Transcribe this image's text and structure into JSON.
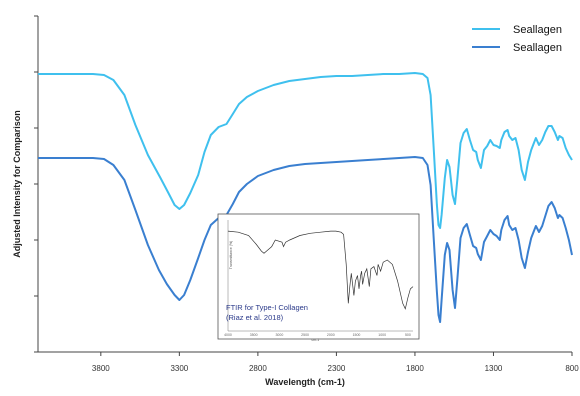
{
  "chart_data": {
    "type": "line",
    "title": "",
    "xlabel": "Wavelength (cm-1)",
    "ylabel": "Adjusted Intensity for Comparison",
    "xlim": [
      4200,
      800
    ],
    "x_reversed": true,
    "x_ticks": [
      "3800",
      "3300",
      "2800",
      "2300",
      "1800",
      "1300",
      "800"
    ],
    "y_tick_labels": false,
    "grid": false,
    "legend_position": "top-right",
    "series": [
      {
        "name": "Seallagen",
        "color": "#3fc0ee",
        "points": [
          [
            4200,
            74
          ],
          [
            4000,
            74
          ],
          [
            3850,
            74
          ],
          [
            3780,
            75
          ],
          [
            3720,
            80
          ],
          [
            3650,
            95
          ],
          [
            3580,
            125
          ],
          [
            3500,
            155
          ],
          [
            3420,
            178
          ],
          [
            3370,
            193
          ],
          [
            3330,
            205
          ],
          [
            3300,
            209
          ],
          [
            3270,
            205
          ],
          [
            3230,
            193
          ],
          [
            3180,
            175
          ],
          [
            3140,
            152
          ],
          [
            3100,
            135
          ],
          [
            3050,
            127
          ],
          [
            3000,
            124
          ],
          [
            2960,
            114
          ],
          [
            2920,
            104
          ],
          [
            2870,
            97
          ],
          [
            2800,
            91
          ],
          [
            2700,
            85
          ],
          [
            2600,
            81
          ],
          [
            2500,
            79
          ],
          [
            2400,
            77
          ],
          [
            2300,
            76
          ],
          [
            2200,
            76
          ],
          [
            2100,
            75
          ],
          [
            2000,
            74
          ],
          [
            1900,
            74
          ],
          [
            1800,
            73
          ],
          [
            1750,
            74
          ],
          [
            1720,
            78
          ],
          [
            1700,
            95
          ],
          [
            1680,
            150
          ],
          [
            1660,
            205
          ],
          [
            1650,
            225
          ],
          [
            1640,
            228
          ],
          [
            1630,
            215
          ],
          [
            1610,
            178
          ],
          [
            1595,
            160
          ],
          [
            1580,
            167
          ],
          [
            1560,
            195
          ],
          [
            1545,
            204
          ],
          [
            1530,
            180
          ],
          [
            1510,
            143
          ],
          [
            1490,
            133
          ],
          [
            1470,
            129
          ],
          [
            1450,
            140
          ],
          [
            1430,
            150
          ],
          [
            1410,
            152
          ],
          [
            1400,
            160
          ],
          [
            1380,
            168
          ],
          [
            1360,
            150
          ],
          [
            1340,
            146
          ],
          [
            1320,
            140
          ],
          [
            1300,
            145
          ],
          [
            1280,
            146
          ],
          [
            1260,
            148
          ],
          [
            1250,
            140
          ],
          [
            1230,
            132
          ],
          [
            1210,
            130
          ],
          [
            1200,
            136
          ],
          [
            1180,
            140
          ],
          [
            1160,
            138
          ],
          [
            1140,
            150
          ],
          [
            1120,
            170
          ],
          [
            1100,
            180
          ],
          [
            1080,
            162
          ],
          [
            1060,
            150
          ],
          [
            1040,
            142
          ],
          [
            1030,
            138
          ],
          [
            1010,
            145
          ],
          [
            990,
            140
          ],
          [
            970,
            132
          ],
          [
            950,
            126
          ],
          [
            930,
            126
          ],
          [
            910,
            132
          ],
          [
            890,
            140
          ],
          [
            880,
            136
          ],
          [
            860,
            138
          ],
          [
            840,
            148
          ],
          [
            820,
            155
          ],
          [
            800,
            160
          ]
        ]
      },
      {
        "name": "Seallagen",
        "color": "#3a7fd0",
        "points": [
          [
            4200,
            158
          ],
          [
            4000,
            158
          ],
          [
            3850,
            158
          ],
          [
            3780,
            159
          ],
          [
            3720,
            165
          ],
          [
            3650,
            180
          ],
          [
            3580,
            210
          ],
          [
            3500,
            245
          ],
          [
            3430,
            270
          ],
          [
            3380,
            284
          ],
          [
            3330,
            295
          ],
          [
            3300,
            300
          ],
          [
            3270,
            295
          ],
          [
            3230,
            280
          ],
          [
            3180,
            258
          ],
          [
            3140,
            240
          ],
          [
            3100,
            225
          ],
          [
            3050,
            218
          ],
          [
            3000,
            215
          ],
          [
            2960,
            204
          ],
          [
            2920,
            192
          ],
          [
            2870,
            184
          ],
          [
            2800,
            176
          ],
          [
            2700,
            170
          ],
          [
            2600,
            166
          ],
          [
            2500,
            164
          ],
          [
            2400,
            163
          ],
          [
            2300,
            162
          ],
          [
            2200,
            161
          ],
          [
            2100,
            160
          ],
          [
            2000,
            159
          ],
          [
            1900,
            158
          ],
          [
            1800,
            157
          ],
          [
            1750,
            158
          ],
          [
            1720,
            165
          ],
          [
            1700,
            185
          ],
          [
            1680,
            240
          ],
          [
            1660,
            292
          ],
          [
            1650,
            315
          ],
          [
            1640,
            322
          ],
          [
            1630,
            300
          ],
          [
            1610,
            255
          ],
          [
            1595,
            243
          ],
          [
            1580,
            250
          ],
          [
            1560,
            290
          ],
          [
            1545,
            308
          ],
          [
            1530,
            280
          ],
          [
            1510,
            238
          ],
          [
            1490,
            228
          ],
          [
            1470,
            224
          ],
          [
            1450,
            235
          ],
          [
            1430,
            246
          ],
          [
            1410,
            248
          ],
          [
            1400,
            254
          ],
          [
            1380,
            260
          ],
          [
            1360,
            242
          ],
          [
            1340,
            236
          ],
          [
            1320,
            230
          ],
          [
            1300,
            234
          ],
          [
            1280,
            236
          ],
          [
            1260,
            240
          ],
          [
            1250,
            230
          ],
          [
            1230,
            220
          ],
          [
            1210,
            216
          ],
          [
            1200,
            225
          ],
          [
            1180,
            230
          ],
          [
            1160,
            228
          ],
          [
            1140,
            240
          ],
          [
            1120,
            258
          ],
          [
            1100,
            268
          ],
          [
            1080,
            252
          ],
          [
            1060,
            238
          ],
          [
            1040,
            230
          ],
          [
            1030,
            226
          ],
          [
            1010,
            232
          ],
          [
            990,
            226
          ],
          [
            970,
            216
          ],
          [
            950,
            206
          ],
          [
            930,
            202
          ],
          [
            910,
            208
          ],
          [
            890,
            218
          ],
          [
            880,
            215
          ],
          [
            860,
            218
          ],
          [
            840,
            228
          ],
          [
            820,
            240
          ],
          [
            800,
            255
          ]
        ]
      }
    ],
    "inset": {
      "title_lines": [
        "FTIR for Type-I Collagen",
        "(Riaz et al. 2018)"
      ],
      "ylabel": "Transmittance (%)",
      "xlabel": "cm-1",
      "x_ticks": [
        "4000",
        "3500",
        "3000",
        "2500",
        "2000",
        "1500",
        "1000",
        "500"
      ],
      "xlim": [
        4000,
        400
      ],
      "points": [
        [
          4000,
          10
        ],
        [
          3800,
          11
        ],
        [
          3600,
          14
        ],
        [
          3450,
          22
        ],
        [
          3350,
          28
        ],
        [
          3300,
          30
        ],
        [
          3250,
          28
        ],
        [
          3150,
          24
        ],
        [
          3080,
          18
        ],
        [
          2950,
          20
        ],
        [
          2920,
          24
        ],
        [
          2880,
          20
        ],
        [
          2800,
          18
        ],
        [
          2600,
          14
        ],
        [
          2400,
          12
        ],
        [
          2200,
          11
        ],
        [
          2000,
          10
        ],
        [
          1900,
          10
        ],
        [
          1800,
          11
        ],
        [
          1750,
          13
        ],
        [
          1700,
          40
        ],
        [
          1660,
          75
        ],
        [
          1630,
          60
        ],
        [
          1600,
          48
        ],
        [
          1550,
          68
        ],
        [
          1520,
          55
        ],
        [
          1480,
          50
        ],
        [
          1450,
          62
        ],
        [
          1420,
          50
        ],
        [
          1400,
          46
        ],
        [
          1380,
          58
        ],
        [
          1340,
          48
        ],
        [
          1300,
          44
        ],
        [
          1250,
          60
        ],
        [
          1220,
          44
        ],
        [
          1160,
          42
        ],
        [
          1100,
          50
        ],
        [
          1080,
          40
        ],
        [
          1030,
          46
        ],
        [
          980,
          38
        ],
        [
          900,
          36
        ],
        [
          800,
          40
        ],
        [
          700,
          55
        ],
        [
          600,
          75
        ],
        [
          550,
          80
        ],
        [
          500,
          70
        ],
        [
          450,
          62
        ],
        [
          400,
          60
        ]
      ]
    }
  }
}
